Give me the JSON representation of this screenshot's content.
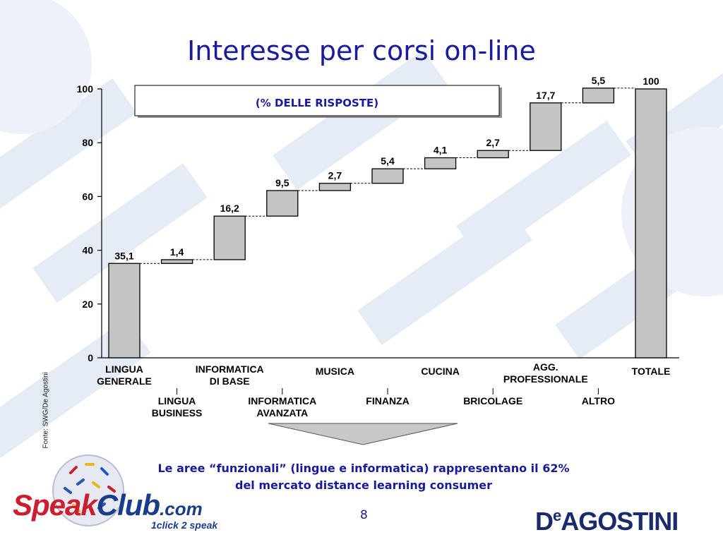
{
  "slide": {
    "title": "Interesse per corsi on-line",
    "source": "Fonte: SWG/De Agostini",
    "conclusion_line1": "Le aree “funzionali” (lingue e informatica) rappresentano il 62%",
    "conclusion_line2": "del mercato distance learning consumer",
    "page_number": "8",
    "logo_left": {
      "part1": "Speak",
      "part2": "Club",
      "part3": ".com",
      "tagline": "1click 2 speak"
    },
    "logo_right": {
      "part1": "D",
      "part2": "e",
      "part3": "AGOSTINI"
    }
  },
  "chart_data": {
    "type": "bar",
    "subtype": "waterfall",
    "title": "",
    "subtitle_box": "(% DELLE RISPOSTE)",
    "xlabel": "",
    "ylabel": "",
    "ylim": [
      0,
      100
    ],
    "yticks": [
      0,
      20,
      40,
      60,
      80,
      100
    ],
    "grid": false,
    "categories": [
      [
        "LINGUA",
        "GENERALE"
      ],
      [
        "LINGUA",
        "BUSINESS"
      ],
      [
        "INFORMATICA",
        "DI BASE"
      ],
      [
        "INFORMATICA",
        "AVANZATA"
      ],
      [
        "MUSICA"
      ],
      [
        "FINANZA"
      ],
      [
        "CUCINA"
      ],
      [
        "BRICOLAGE"
      ],
      [
        "AGG.",
        "PROFESSIONALE"
      ],
      [
        "ALTRO"
      ],
      [
        "TOTALE"
      ]
    ],
    "values": [
      35.1,
      1.4,
      16.2,
      9.5,
      2.7,
      5.4,
      4.1,
      2.7,
      17.7,
      5.5,
      100
    ],
    "value_labels": [
      "35,1",
      "1,4",
      "16,2",
      "9,5",
      "2,7",
      "5,4",
      "4,1",
      "2,7",
      "17,7",
      "5,5",
      "100"
    ],
    "total_index": 10,
    "colors": {
      "bar": "#c4c4c4",
      "stroke": "#000000",
      "text": "#000000",
      "connector": "#000000"
    }
  }
}
